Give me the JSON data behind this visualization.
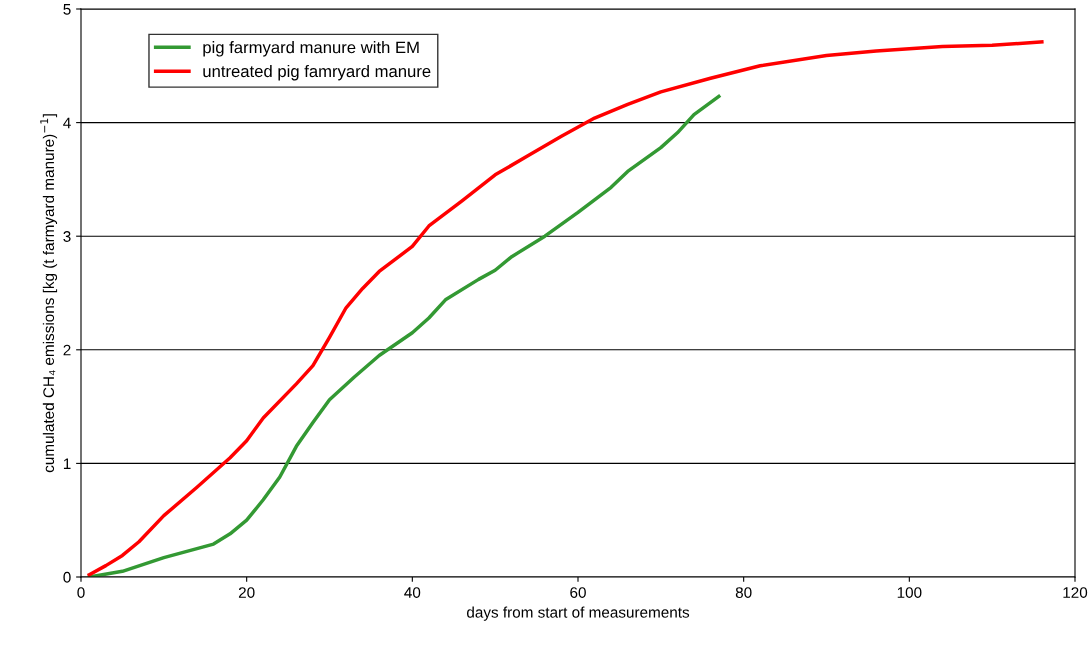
{
  "chart_data": {
    "type": "line",
    "xlabel": "days from start of measurements",
    "ylabel": "cumulated CH₄ emissions [kg (t farmyard manure)$^{−1}$]",
    "xlim": [
      0,
      120
    ],
    "xticks": [
      0,
      20,
      40,
      60,
      80,
      100,
      120
    ],
    "ylim": [
      0,
      5
    ],
    "yticks": [
      0,
      1,
      2,
      3,
      4,
      5
    ],
    "grid": "y",
    "legend": "top left",
    "marker": "none",
    "line_style": "solid",
    "series": [
      {
        "name": "pig farmyard manure with EM",
        "color": "#339933",
        "x": [
          1,
          5,
          10,
          16,
          18,
          20,
          22,
          24,
          26,
          28,
          30,
          33,
          36,
          40,
          42,
          44,
          48,
          50,
          52,
          56,
          60,
          64,
          66,
          70,
          72,
          74,
          77
        ],
        "values": [
          0,
          0.05,
          0.17,
          0.29,
          0.38,
          0.5,
          0.68,
          0.88,
          1.15,
          1.36,
          1.56,
          1.76,
          1.95,
          2.15,
          2.28,
          2.44,
          2.62,
          2.7,
          2.82,
          3.0,
          3.21,
          3.43,
          3.57,
          3.78,
          3.91,
          4.07,
          4.23
        ]
      },
      {
        "name": "untreated pig famryard manure",
        "color": "#ff0000",
        "x": [
          1,
          3,
          5,
          7,
          10,
          14,
          18,
          20,
          22,
          26,
          28,
          30,
          32,
          34,
          36,
          40,
          42,
          46,
          50,
          54,
          58,
          62,
          66,
          70,
          76,
          82,
          90,
          96,
          104,
          110,
          116
        ],
        "values": [
          0.02,
          0.1,
          0.19,
          0.31,
          0.54,
          0.79,
          1.05,
          1.2,
          1.4,
          1.7,
          1.86,
          2.11,
          2.37,
          2.54,
          2.69,
          2.91,
          3.09,
          3.31,
          3.54,
          3.71,
          3.88,
          4.04,
          4.16,
          4.27,
          4.39,
          4.5,
          4.59,
          4.63,
          4.67,
          4.68,
          4.71
        ]
      }
    ]
  }
}
